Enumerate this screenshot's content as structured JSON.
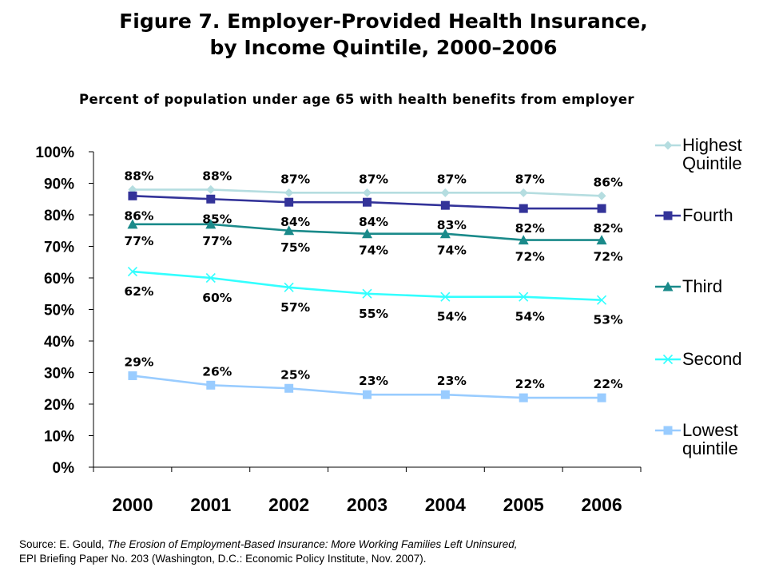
{
  "title": {
    "line1": "Figure 7. Employer-Provided Health Insurance,",
    "line2": "by Income Quintile, 2000–2006"
  },
  "subtitle": "Percent of population under age 65 with health benefits from employer",
  "source": {
    "prefix": "Source: E. Gould, ",
    "italic": "The Erosion of Employment-Based Insurance: More Working Families Left Uninsured,",
    "line2": "EPI Briefing Paper No. 203 (Washington, D.C.: Economic Policy Institute, Nov. 2007)."
  },
  "chart_data": {
    "type": "line",
    "title": "Figure 7. Employer-Provided Health Insurance, by Income Quintile, 2000–2006",
    "subtitle": "Percent of population under age 65 with health benefits from employer",
    "x": [
      "2000",
      "2001",
      "2002",
      "2003",
      "2004",
      "2005",
      "2006"
    ],
    "y_ticks": [
      "0%",
      "10%",
      "20%",
      "30%",
      "40%",
      "50%",
      "60%",
      "70%",
      "80%",
      "90%",
      "100%"
    ],
    "ylim": [
      0,
      100
    ],
    "grid": false,
    "legend_position": "right",
    "series": [
      {
        "name": "Highest Quintile",
        "values": [
          88,
          88,
          87,
          87,
          87,
          87,
          86
        ],
        "labels": [
          "88%",
          "88%",
          "87%",
          "87%",
          "87%",
          "87%",
          "86%"
        ],
        "color": "#b5dde0",
        "marker": "diamond"
      },
      {
        "name": "Fourth",
        "values": [
          86,
          85,
          84,
          84,
          83,
          82,
          82
        ],
        "labels": [
          "86%",
          "85%",
          "84%",
          "84%",
          "83%",
          "82%",
          "82%"
        ],
        "color": "#333399",
        "marker": "square"
      },
      {
        "name": "Third",
        "values": [
          77,
          77,
          75,
          74,
          74,
          72,
          72
        ],
        "labels": [
          "77%",
          "77%",
          "75%",
          "74%",
          "74%",
          "72%",
          "72%"
        ],
        "color": "#1a8a8a",
        "marker": "triangle"
      },
      {
        "name": "Second",
        "values": [
          62,
          60,
          57,
          55,
          54,
          54,
          53
        ],
        "labels": [
          "62%",
          "60%",
          "57%",
          "55%",
          "54%",
          "54%",
          "53%"
        ],
        "color": "#33ffff",
        "marker": "x"
      },
      {
        "name": "Lowest quintile",
        "values": [
          29,
          26,
          25,
          23,
          23,
          22,
          22
        ],
        "labels": [
          "29%",
          "26%",
          "25%",
          "23%",
          "23%",
          "22%",
          "22%"
        ],
        "color": "#99ccff",
        "marker": "square"
      }
    ]
  }
}
